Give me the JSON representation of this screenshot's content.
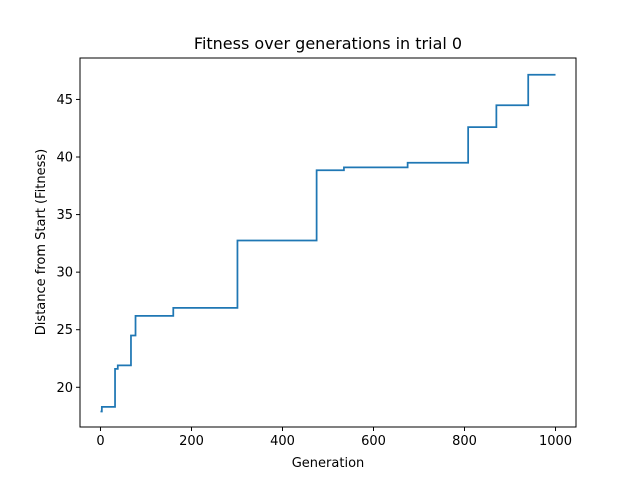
{
  "chart_data": {
    "type": "line",
    "title": "Fitness over generations in trial 0",
    "xlabel": "Generation",
    "ylabel": "Distance from Start (Fitness)",
    "xlim": [
      -45,
      1045
    ],
    "ylim": [
      16.55,
      48.6
    ],
    "xticks": [
      0,
      200,
      400,
      600,
      800,
      1000
    ],
    "yticks": [
      20,
      25,
      30,
      35,
      40,
      45
    ],
    "xtick_labels": [
      "0",
      "200",
      "400",
      "600",
      "800",
      "1000"
    ],
    "ytick_labels": [
      "20",
      "25",
      "30",
      "35",
      "40",
      "45"
    ],
    "grid": false,
    "legend": "none",
    "series": [
      {
        "color": "#1f77b4",
        "step": "post",
        "x": [
          0,
          3,
          32,
          38,
          67,
          77,
          160,
          301,
          475,
          535,
          675,
          808,
          870,
          940,
          1000
        ],
        "y": [
          17.9,
          18.3,
          21.6,
          21.9,
          24.5,
          26.2,
          26.9,
          32.75,
          38.85,
          39.1,
          39.5,
          42.6,
          44.5,
          47.15,
          47.15
        ]
      }
    ]
  }
}
